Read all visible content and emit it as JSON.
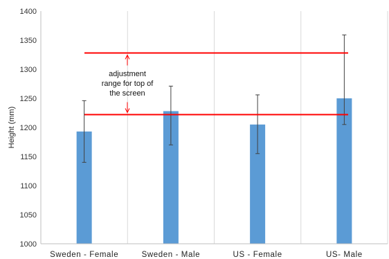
{
  "chart_data": {
    "type": "bar",
    "title": "",
    "xlabel": "",
    "ylabel": "Height (mm)",
    "ylim": [
      1000,
      1400
    ],
    "yticks": [
      1000,
      1050,
      1100,
      1150,
      1200,
      1250,
      1300,
      1350,
      1400
    ],
    "categories": [
      "Sweden - Female",
      "Sweden - Male",
      "US - Female",
      "US- Male"
    ],
    "values": [
      1193,
      1228,
      1205,
      1250
    ],
    "error_low": [
      1140,
      1170,
      1155,
      1205
    ],
    "error_high": [
      1246,
      1271,
      1256,
      1359
    ],
    "grid": "vertical category separators",
    "bar_color": "#5b9bd5",
    "reference_lines": [
      {
        "value": 1328,
        "color": "#ff0000"
      },
      {
        "value": 1222,
        "color": "#ff0000"
      }
    ],
    "annotation": {
      "lines": [
        "adjustment",
        "range for top of",
        "the screen"
      ],
      "range": [
        1222,
        1328
      ]
    }
  }
}
